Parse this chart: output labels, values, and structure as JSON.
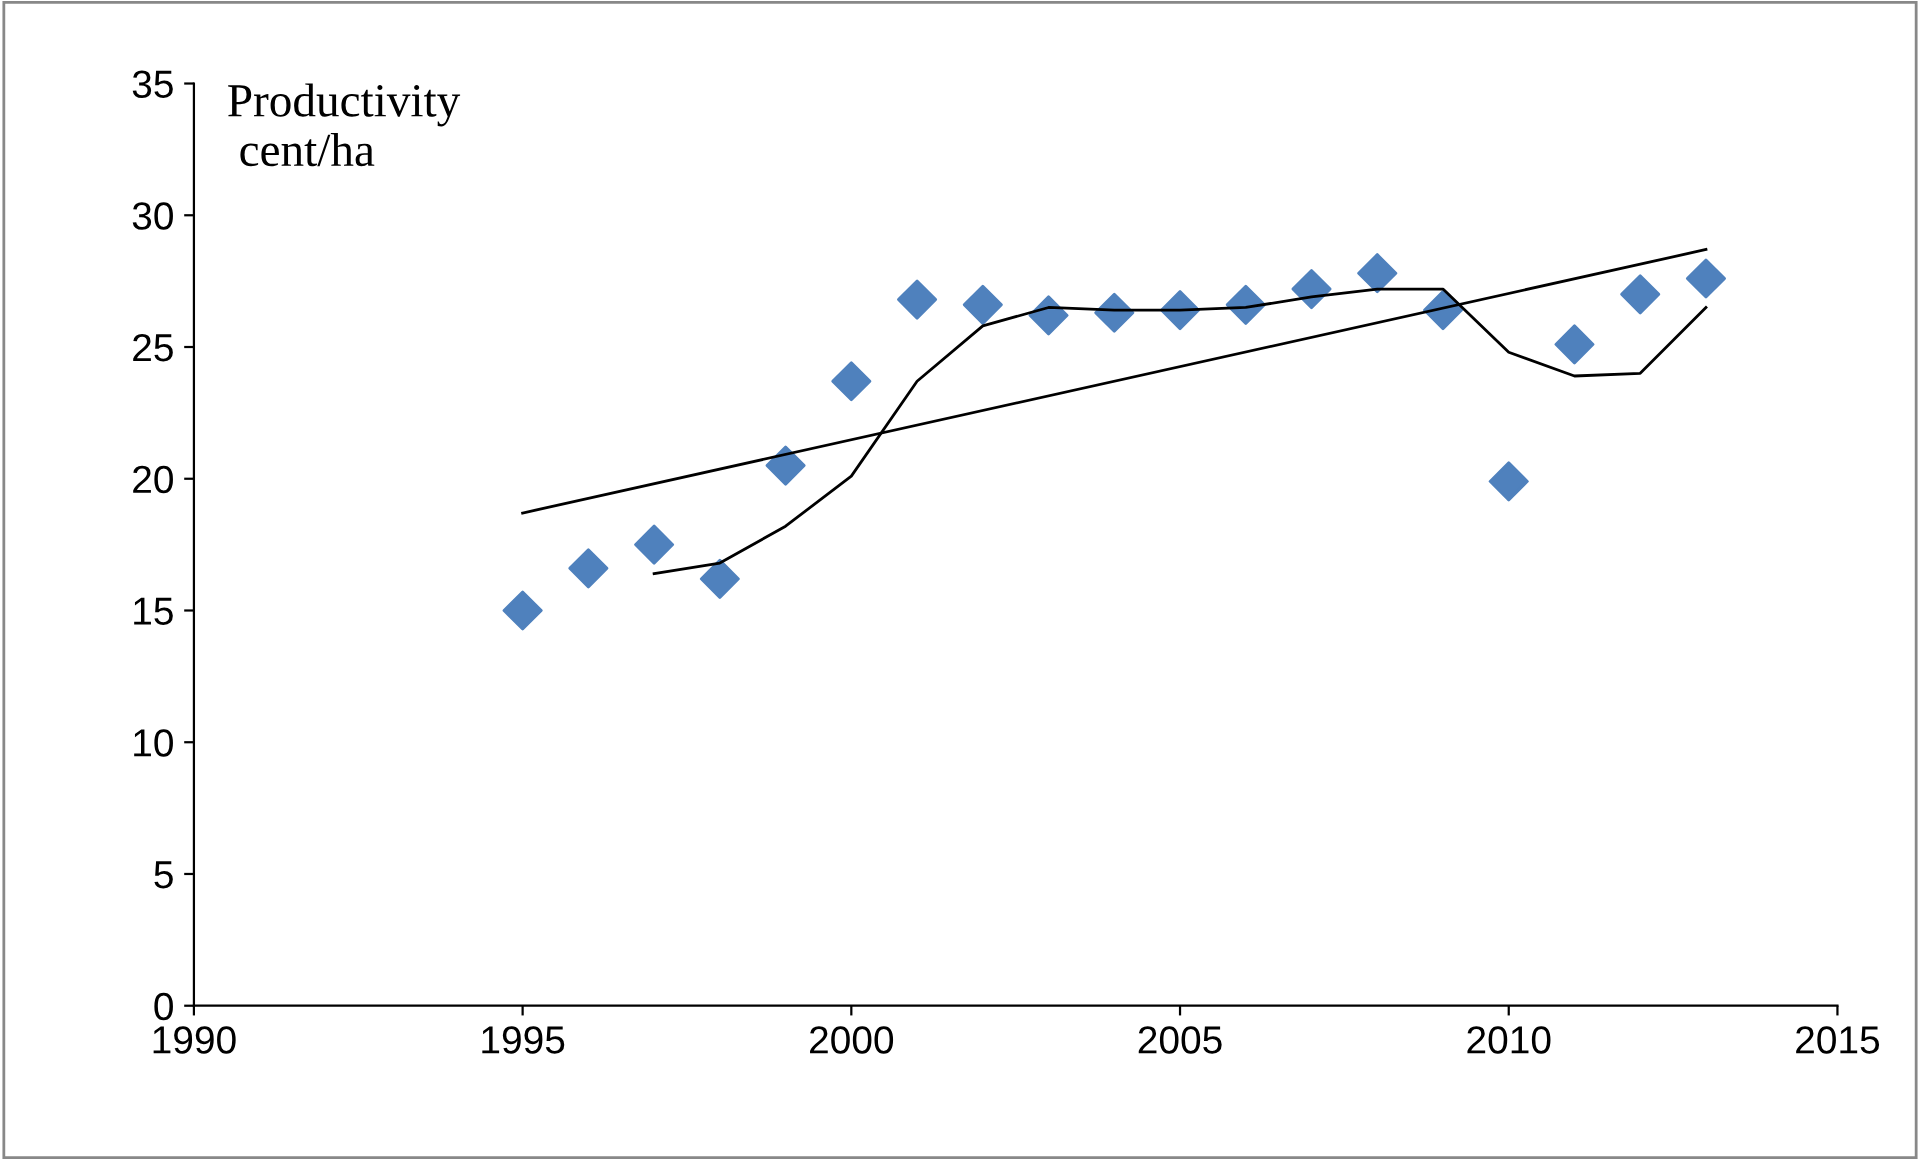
{
  "chart_data": {
    "type": "scatter",
    "ylabel": "Productivity\n cent/ha",
    "xlim": [
      1990,
      2015
    ],
    "ylim": [
      0,
      35
    ],
    "xticks": [
      1990,
      1995,
      2000,
      2005,
      2010,
      2015
    ],
    "yticks": [
      0,
      5,
      10,
      15,
      20,
      25,
      30,
      35
    ],
    "grid": false,
    "legend": false,
    "series": [
      {
        "marker": "diamond",
        "color": "#4f81bd",
        "x": [
          1995,
          1996,
          1997,
          1998,
          1999,
          2000,
          2001,
          2002,
          2003,
          2004,
          2005,
          2006,
          2007,
          2008,
          2009,
          2010,
          2011,
          2012,
          2013
        ],
        "values": [
          15.0,
          16.6,
          17.5,
          16.2,
          20.5,
          23.7,
          26.8,
          26.6,
          26.2,
          26.3,
          26.4,
          26.6,
          27.2,
          27.8,
          26.4,
          19.9,
          25.1,
          27.0,
          27.6
        ]
      },
      {
        "type": "line",
        "marker": "none",
        "color": "#000000",
        "x": [
          1995,
          2013
        ],
        "values": [
          18.7,
          28.7
        ]
      },
      {
        "type": "line",
        "marker": "none",
        "color": "#000000",
        "x": [
          1997,
          1998,
          1999,
          2000,
          2001,
          2002,
          2003,
          2004,
          2005,
          2006,
          2007,
          2008,
          2009,
          2010,
          2011,
          2012,
          2013
        ],
        "values": [
          16.4,
          16.8,
          18.2,
          20.1,
          23.7,
          25.8,
          26.5,
          26.4,
          26.4,
          26.5,
          26.9,
          27.2,
          27.2,
          24.8,
          23.9,
          24.0,
          26.5
        ]
      }
    ]
  }
}
